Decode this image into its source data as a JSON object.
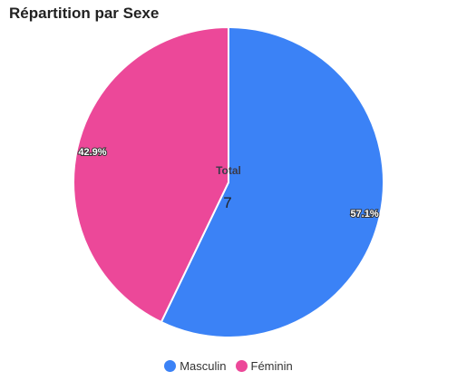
{
  "chart_data": {
    "type": "pie",
    "title": "Répartition par Sexe",
    "series": [
      {
        "name": "Masculin",
        "value": 4,
        "percent_label": "57.1%",
        "color": "#3b82f6"
      },
      {
        "name": "Féminin",
        "value": 3,
        "percent_label": "42.9%",
        "color": "#ec4899"
      }
    ],
    "center_label": "Total",
    "center_value": "7",
    "legend_position": "bottom-center"
  }
}
